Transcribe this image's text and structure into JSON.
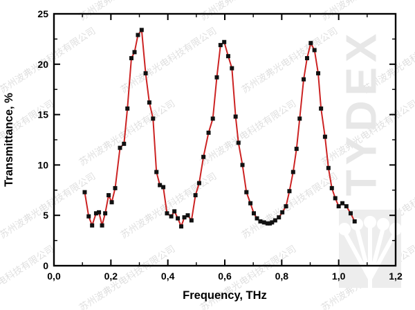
{
  "watermark": {
    "company_text": "苏州波弗光电科技有限公司",
    "brand_text": "TYDEX",
    "company_color": "#dcdcdc",
    "brand_color": "#e7e7e7"
  },
  "chart_data": {
    "type": "line",
    "title": "",
    "xlabel": "Frequency, THz",
    "ylabel": "Transmittance, %",
    "xlim": [
      0,
      1.2
    ],
    "ylim": [
      0,
      25
    ],
    "x_major_ticks": [
      0,
      0.2,
      0.4,
      0.6,
      0.8,
      1.0,
      1.2
    ],
    "x_tick_labels": [
      "0,0",
      "0,2",
      "0,4",
      "0,6",
      "0,8",
      "1,0",
      "1,2"
    ],
    "x_minor_step": 0.1,
    "y_major_ticks": [
      0,
      5,
      10,
      15,
      20,
      25
    ],
    "y_tick_labels": [
      "0",
      "5",
      "10",
      "15",
      "20",
      "25"
    ],
    "y_minor_step": 2.5,
    "grid": false,
    "legend": "none",
    "line_color": "#cc2222",
    "marker_color": "#111111",
    "marker_shape": "square",
    "series": [
      {
        "name": "transmittance",
        "x": [
          0.108,
          0.122,
          0.134,
          0.148,
          0.158,
          0.169,
          0.18,
          0.192,
          0.203,
          0.215,
          0.232,
          0.246,
          0.258,
          0.272,
          0.283,
          0.295,
          0.308,
          0.322,
          0.335,
          0.348,
          0.36,
          0.372,
          0.384,
          0.397,
          0.412,
          0.423,
          0.435,
          0.447,
          0.458,
          0.47,
          0.483,
          0.497,
          0.51,
          0.525,
          0.543,
          0.558,
          0.572,
          0.585,
          0.598,
          0.612,
          0.625,
          0.638,
          0.648,
          0.662,
          0.676,
          0.69,
          0.702,
          0.713,
          0.725,
          0.738,
          0.75,
          0.758,
          0.766,
          0.777,
          0.79,
          0.802,
          0.815,
          0.827,
          0.84,
          0.852,
          0.863,
          0.877,
          0.889,
          0.902,
          0.915,
          0.928,
          0.938,
          0.952,
          0.964,
          0.976,
          0.988,
          1.0,
          1.013,
          1.027,
          1.042,
          1.056
        ],
        "y": [
          7.3,
          4.9,
          4.0,
          5.2,
          5.3,
          4.0,
          5.2,
          7.0,
          6.3,
          7.7,
          11.7,
          12.1,
          15.6,
          20.6,
          21.2,
          22.9,
          23.4,
          19.1,
          16.2,
          14.6,
          9.3,
          8.0,
          7.8,
          5.2,
          4.9,
          5.4,
          4.7,
          3.9,
          4.8,
          5.0,
          4.5,
          7.0,
          8.2,
          10.8,
          13.2,
          14.6,
          18.7,
          21.9,
          22.2,
          20.8,
          19.6,
          14.8,
          12.2,
          10.0,
          7.3,
          6.2,
          5.2,
          4.7,
          4.4,
          4.3,
          4.2,
          4.2,
          4.3,
          4.5,
          4.8,
          5.3,
          5.9,
          7.4,
          9.3,
          11.6,
          14.6,
          18.5,
          20.6,
          22.1,
          21.4,
          19.1,
          15.6,
          12.8,
          9.7,
          7.7,
          6.7,
          5.9,
          6.2,
          5.9,
          5.2,
          4.4
        ]
      }
    ]
  }
}
